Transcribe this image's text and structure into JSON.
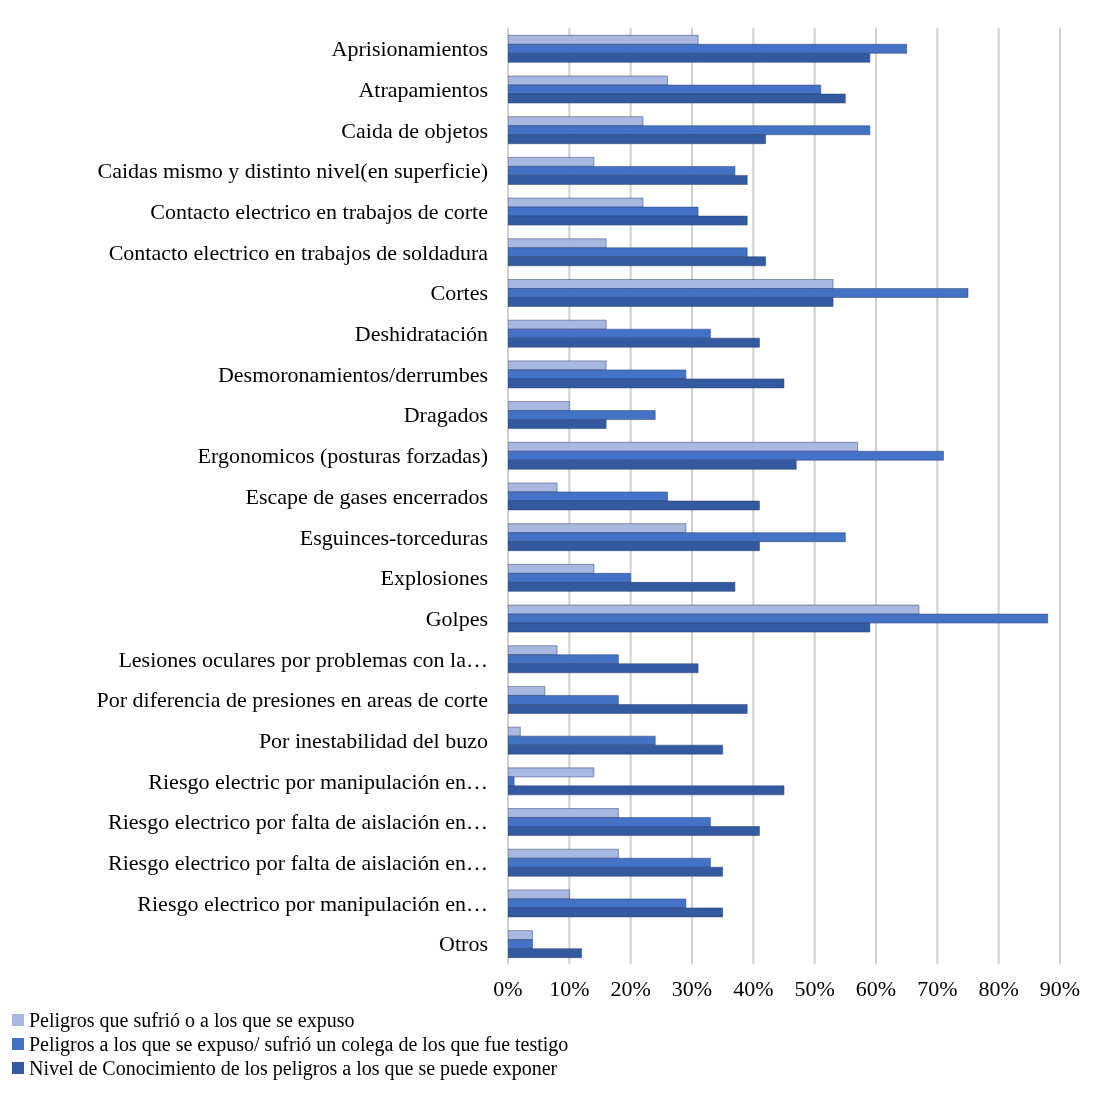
{
  "chart_data": {
    "type": "bar",
    "orientation": "horizontal",
    "categories": [
      "Aprisionamientos",
      "Atrapamientos",
      "Caida de objetos",
      "Caidas mismo y distinto nivel(en superficie)",
      "Contacto electrico en trabajos de corte",
      "Contacto electrico en trabajos de soldadura",
      "Cortes",
      "Deshidratación",
      "Desmoronamientos/derrumbes",
      "Dragados",
      "Ergonomicos (posturas forzadas)",
      "Escape de gases encerrados",
      "Esguinces-torceduras",
      "Explosiones",
      "Golpes",
      "Lesiones oculares por problemas con la…",
      "Por diferencia de presiones en areas de corte",
      "Por inestabilidad del buzo",
      "Riesgo electric por manipulación en…",
      "Riesgo electrico por falta de aislación en…",
      "Riesgo electrico por falta de aislación en…",
      "Riesgo electrico por manipulación en…",
      "Otros"
    ],
    "series": [
      {
        "name": "Peligros que sufrió o a los que se expuso",
        "color": "#a9b8e0",
        "values": [
          31,
          26,
          22,
          14,
          22,
          16,
          53,
          16,
          16,
          10,
          57,
          8,
          29,
          14,
          67,
          8,
          6,
          2,
          14,
          18,
          18,
          10,
          4
        ]
      },
      {
        "name": "Peligros a los que se expuso/ sufrió un colega de los que fue testigo",
        "color": "#4472c4",
        "values": [
          65,
          51,
          59,
          37,
          31,
          39,
          75,
          33,
          29,
          24,
          71,
          26,
          55,
          20,
          88,
          18,
          18,
          24,
          1,
          33,
          33,
          29,
          4
        ]
      },
      {
        "name": "Nivel de Conocimiento de los peligros a los que se puede exponer",
        "color": "#335aa1",
        "values": [
          59,
          55,
          42,
          39,
          39,
          42,
          53,
          41,
          45,
          16,
          47,
          41,
          41,
          37,
          59,
          31,
          39,
          35,
          45,
          41,
          35,
          35,
          12
        ]
      }
    ],
    "xlim": [
      0,
      90
    ],
    "xticks": [
      {
        "value": 0,
        "label": "0%"
      },
      {
        "value": 10,
        "label": "10%"
      },
      {
        "value": 20,
        "label": "20%"
      },
      {
        "value": 30,
        "label": "30%"
      },
      {
        "value": 40,
        "label": "40%"
      },
      {
        "value": 50,
        "label": "50%"
      },
      {
        "value": 60,
        "label": "60%"
      },
      {
        "value": 70,
        "label": "70%"
      },
      {
        "value": 80,
        "label": "80%"
      },
      {
        "value": 90,
        "label": "90%"
      }
    ],
    "grid": "x",
    "legend": "bottom left"
  }
}
